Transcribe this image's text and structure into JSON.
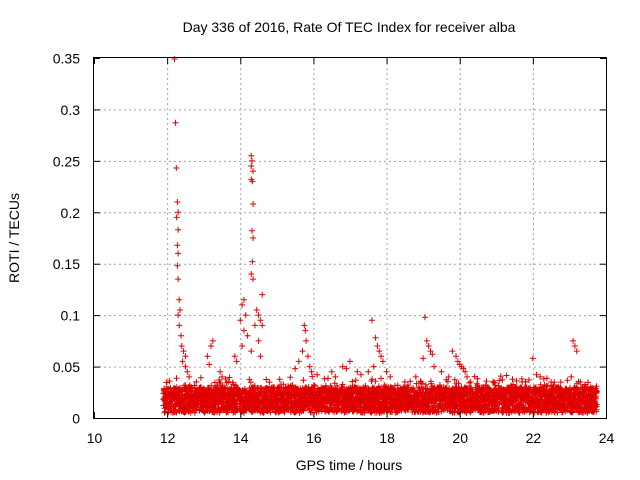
{
  "chart_data": {
    "type": "scatter",
    "title": "Day 336 of 2016, Rate Of TEC Index for receiver alba",
    "xlabel": "GPS time / hours",
    "ylabel": "ROTI / TECUs",
    "xlim": [
      10,
      24
    ],
    "ylim": [
      0,
      0.35
    ],
    "x_ticks": [
      {
        "value": 10,
        "label": "10"
      },
      {
        "value": 12,
        "label": "12"
      },
      {
        "value": 14,
        "label": "14"
      },
      {
        "value": 16,
        "label": "16"
      },
      {
        "value": 18,
        "label": "18"
      },
      {
        "value": 20,
        "label": "20"
      },
      {
        "value": 22,
        "label": "22"
      },
      {
        "value": 24,
        "label": "24"
      }
    ],
    "y_ticks": [
      {
        "value": 0,
        "label": "0"
      },
      {
        "value": 0.05,
        "label": "0.05"
      },
      {
        "value": 0.1,
        "label": "0.1"
      },
      {
        "value": 0.15,
        "label": "0.15"
      },
      {
        "value": 0.2,
        "label": "0.2"
      },
      {
        "value": 0.25,
        "label": "0.25"
      },
      {
        "value": 0.3,
        "label": "0.3"
      },
      {
        "value": 0.35,
        "label": "0.35"
      }
    ],
    "grid": true,
    "marker": "+",
    "color": "#e00000",
    "series": [
      {
        "points": [
          [
            12.2,
            0.349
          ],
          [
            12.23,
            0.287
          ],
          [
            12.25,
            0.243
          ],
          [
            12.28,
            0.21
          ],
          [
            12.3,
            0.2
          ],
          [
            12.26,
            0.195
          ],
          [
            12.3,
            0.183
          ],
          [
            12.28,
            0.168
          ],
          [
            12.3,
            0.16
          ],
          [
            12.28,
            0.148
          ],
          [
            12.3,
            0.135
          ],
          [
            12.33,
            0.115
          ],
          [
            12.35,
            0.105
          ],
          [
            12.3,
            0.1
          ],
          [
            12.33,
            0.09
          ],
          [
            12.38,
            0.08
          ],
          [
            12.4,
            0.07
          ],
          [
            12.45,
            0.065
          ],
          [
            12.5,
            0.06
          ],
          [
            12.42,
            0.055
          ],
          [
            12.5,
            0.05
          ],
          [
            12.55,
            0.045
          ],
          [
            12.6,
            0.04
          ],
          [
            14.3,
            0.255
          ],
          [
            14.32,
            0.25
          ],
          [
            14.3,
            0.245
          ],
          [
            14.35,
            0.24
          ],
          [
            14.3,
            0.232
          ],
          [
            14.33,
            0.23
          ],
          [
            14.35,
            0.208
          ],
          [
            14.32,
            0.182
          ],
          [
            14.35,
            0.175
          ],
          [
            14.33,
            0.152
          ],
          [
            14.3,
            0.14
          ],
          [
            14.35,
            0.135
          ],
          [
            14.6,
            0.12
          ],
          [
            14.1,
            0.115
          ],
          [
            14.05,
            0.11
          ],
          [
            14.15,
            0.1
          ],
          [
            14.0,
            0.095
          ],
          [
            14.45,
            0.105
          ],
          [
            14.5,
            0.1
          ],
          [
            14.55,
            0.095
          ],
          [
            14.4,
            0.09
          ],
          [
            14.6,
            0.09
          ],
          [
            14.1,
            0.085
          ],
          [
            14.2,
            0.08
          ],
          [
            14.5,
            0.075
          ],
          [
            14.05,
            0.07
          ],
          [
            14.3,
            0.065
          ],
          [
            14.55,
            0.06
          ],
          [
            13.85,
            0.06
          ],
          [
            13.9,
            0.055
          ],
          [
            13.1,
            0.06
          ],
          [
            13.2,
            0.07
          ],
          [
            13.25,
            0.075
          ],
          [
            13.15,
            0.052
          ],
          [
            13.45,
            0.045
          ],
          [
            13.5,
            0.04
          ],
          [
            13.6,
            0.038
          ],
          [
            15.75,
            0.09
          ],
          [
            15.78,
            0.085
          ],
          [
            15.8,
            0.075
          ],
          [
            15.7,
            0.065
          ],
          [
            15.85,
            0.06
          ],
          [
            15.6,
            0.055
          ],
          [
            15.9,
            0.05
          ],
          [
            15.5,
            0.048
          ],
          [
            15.95,
            0.045
          ],
          [
            16.1,
            0.042
          ],
          [
            16.5,
            0.045
          ],
          [
            16.6,
            0.04
          ],
          [
            16.8,
            0.05
          ],
          [
            16.9,
            0.048
          ],
          [
            17.0,
            0.055
          ],
          [
            17.2,
            0.045
          ],
          [
            17.3,
            0.042
          ],
          [
            17.6,
            0.095
          ],
          [
            17.7,
            0.078
          ],
          [
            17.75,
            0.07
          ],
          [
            17.8,
            0.065
          ],
          [
            17.85,
            0.06
          ],
          [
            17.9,
            0.055
          ],
          [
            17.65,
            0.05
          ],
          [
            17.5,
            0.045
          ],
          [
            18.0,
            0.045
          ],
          [
            18.1,
            0.04
          ],
          [
            18.5,
            0.035
          ],
          [
            18.8,
            0.04
          ],
          [
            19.05,
            0.098
          ],
          [
            19.1,
            0.075
          ],
          [
            19.15,
            0.07
          ],
          [
            19.2,
            0.065
          ],
          [
            19.25,
            0.062
          ],
          [
            19.0,
            0.058
          ],
          [
            19.3,
            0.05
          ],
          [
            19.5,
            0.045
          ],
          [
            19.7,
            0.04
          ],
          [
            19.8,
            0.065
          ],
          [
            19.9,
            0.06
          ],
          [
            19.95,
            0.055
          ],
          [
            20.0,
            0.052
          ],
          [
            20.05,
            0.05
          ],
          [
            20.1,
            0.048
          ],
          [
            20.15,
            0.045
          ],
          [
            20.2,
            0.04
          ],
          [
            20.3,
            0.035
          ],
          [
            21.3,
            0.028
          ],
          [
            21.5,
            0.025
          ],
          [
            21.7,
            0.038
          ],
          [
            21.8,
            0.035
          ],
          [
            22.0,
            0.058
          ],
          [
            22.1,
            0.042
          ],
          [
            22.2,
            0.04
          ],
          [
            22.3,
            0.038
          ],
          [
            22.5,
            0.035
          ],
          [
            22.7,
            0.03
          ],
          [
            23.1,
            0.075
          ],
          [
            23.15,
            0.07
          ],
          [
            23.2,
            0.065
          ],
          [
            23.05,
            0.04
          ],
          [
            23.3,
            0.035
          ],
          [
            23.5,
            0.03
          ],
          [
            23.7,
            0.025
          ]
        ]
      }
    ],
    "dense_band": {
      "x_start": 11.9,
      "x_end": 23.75,
      "y_low": 0.005,
      "y_high": 0.03
    }
  }
}
